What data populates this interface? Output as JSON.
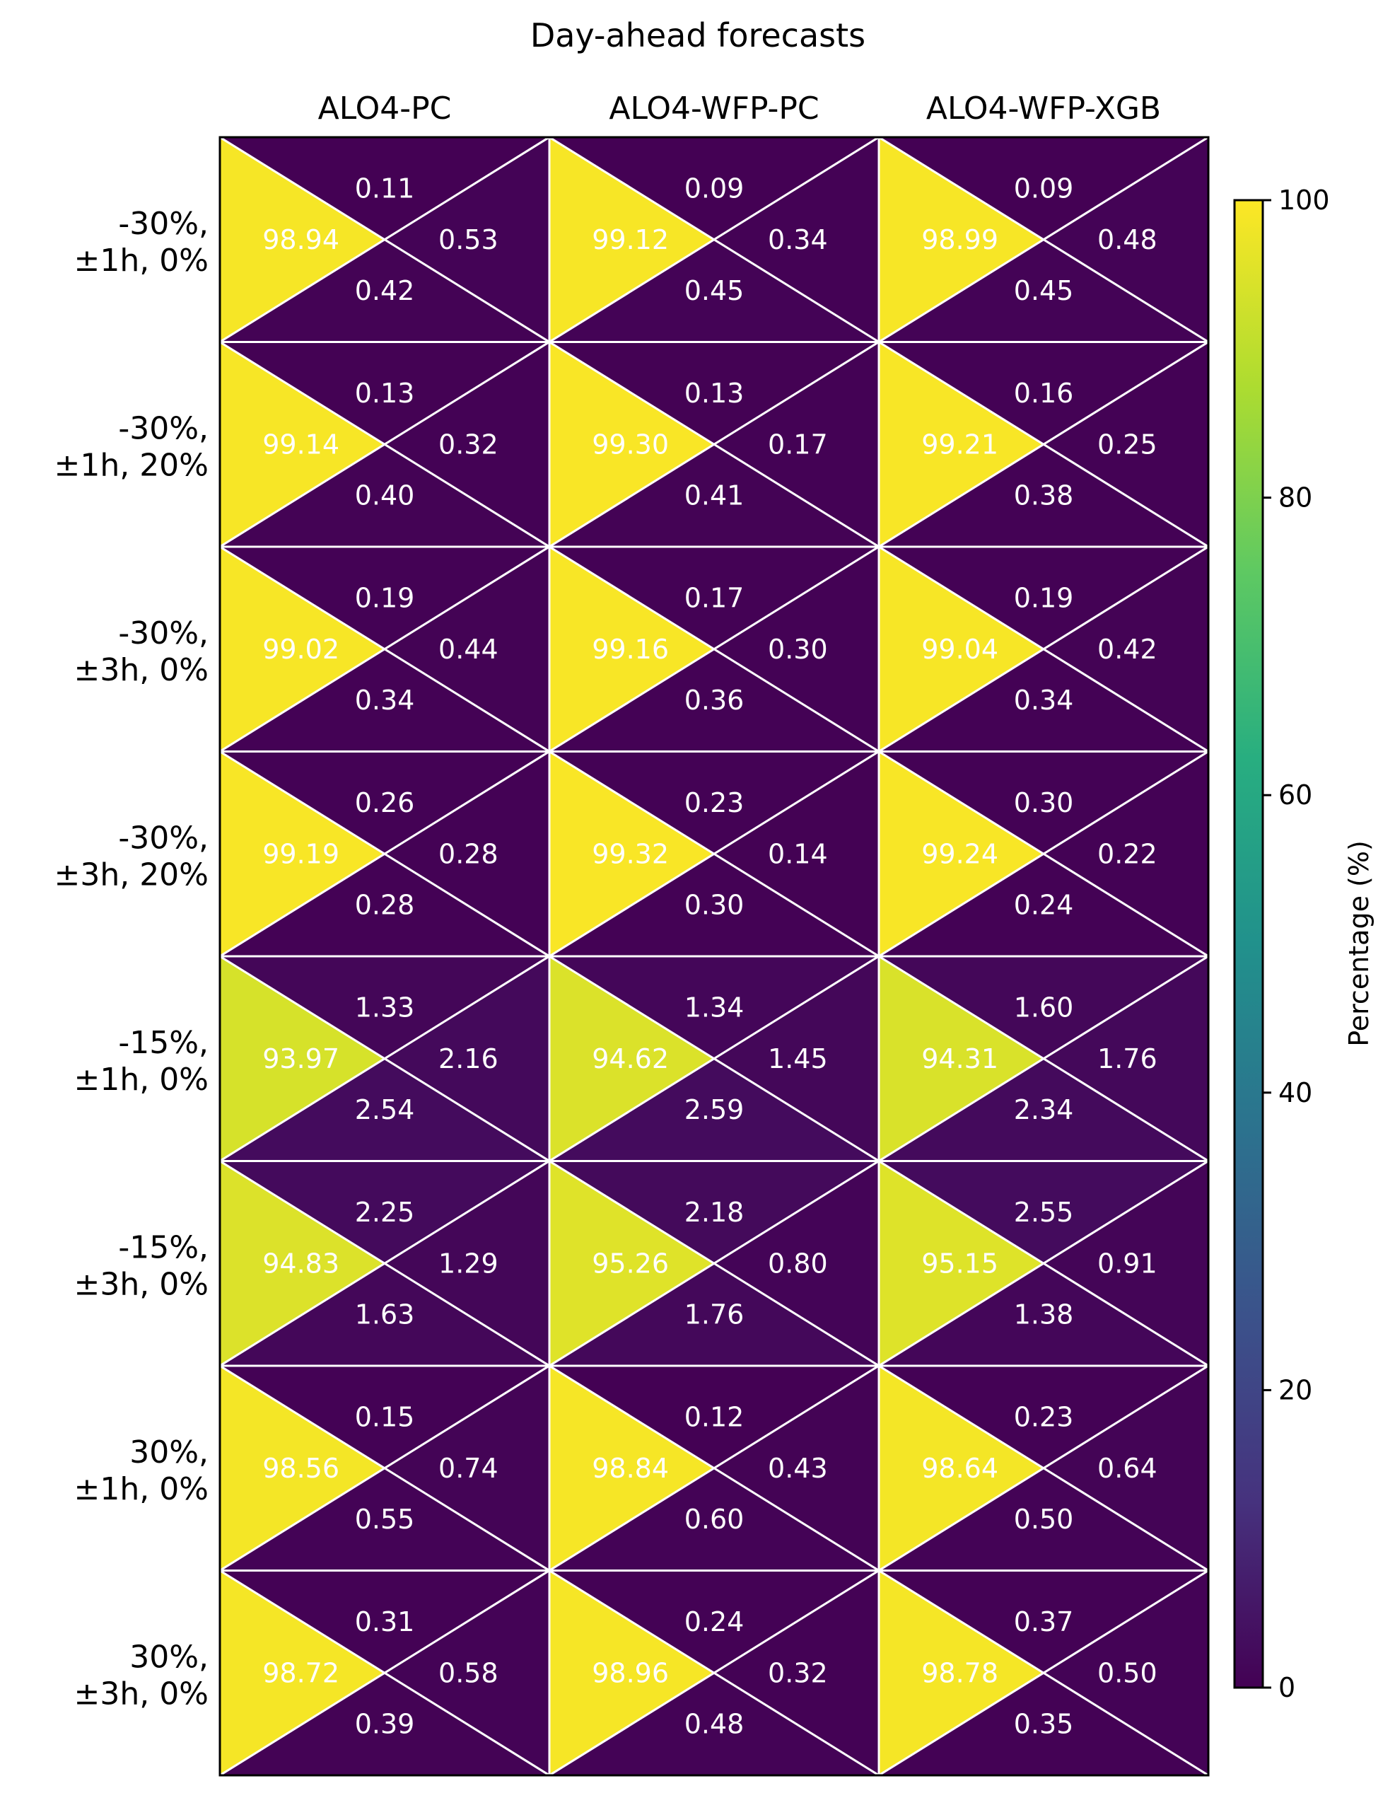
{
  "chart_data": {
    "type": "heatmap",
    "title": "Day-ahead forecasts",
    "columns": [
      "ALO4-PC",
      "ALO4-WFP-PC",
      "ALO4-WFP-XGB"
    ],
    "rows": [
      [
        "-30%,",
        "±1h, 0%"
      ],
      [
        "-30%,",
        "±1h, 20%"
      ],
      [
        "-30%,",
        "±3h, 0%"
      ],
      [
        "-30%,",
        "±3h, 20%"
      ],
      [
        "-15%,",
        "±1h, 0%"
      ],
      [
        "-15%,",
        "±3h, 0%"
      ],
      [
        "30%,",
        "±1h, 0%"
      ],
      [
        "30%,",
        "±3h, 0%"
      ]
    ],
    "cell_layout": "each cell split into four triangles: left, top, right, bottom",
    "cells": [
      [
        {
          "left": "98.94",
          "top": "0.11",
          "right": "0.53",
          "bottom": "0.42"
        },
        {
          "left": "99.12",
          "top": "0.09",
          "right": "0.34",
          "bottom": "0.45"
        },
        {
          "left": "98.99",
          "top": "0.09",
          "right": "0.48",
          "bottom": "0.45"
        }
      ],
      [
        {
          "left": "99.14",
          "top": "0.13",
          "right": "0.32",
          "bottom": "0.40"
        },
        {
          "left": "99.30",
          "top": "0.13",
          "right": "0.17",
          "bottom": "0.41"
        },
        {
          "left": "99.21",
          "top": "0.16",
          "right": "0.25",
          "bottom": "0.38"
        }
      ],
      [
        {
          "left": "99.02",
          "top": "0.19",
          "right": "0.44",
          "bottom": "0.34"
        },
        {
          "left": "99.16",
          "top": "0.17",
          "right": "0.30",
          "bottom": "0.36"
        },
        {
          "left": "99.04",
          "top": "0.19",
          "right": "0.42",
          "bottom": "0.34"
        }
      ],
      [
        {
          "left": "99.19",
          "top": "0.26",
          "right": "0.28",
          "bottom": "0.28"
        },
        {
          "left": "99.32",
          "top": "0.23",
          "right": "0.14",
          "bottom": "0.30"
        },
        {
          "left": "99.24",
          "top": "0.30",
          "right": "0.22",
          "bottom": "0.24"
        }
      ],
      [
        {
          "left": "93.97",
          "top": "1.33",
          "right": "2.16",
          "bottom": "2.54"
        },
        {
          "left": "94.62",
          "top": "1.34",
          "right": "1.45",
          "bottom": "2.59"
        },
        {
          "left": "94.31",
          "top": "1.60",
          "right": "1.76",
          "bottom": "2.34"
        }
      ],
      [
        {
          "left": "94.83",
          "top": "2.25",
          "right": "1.29",
          "bottom": "1.63"
        },
        {
          "left": "95.26",
          "top": "2.18",
          "right": "0.80",
          "bottom": "1.76"
        },
        {
          "left": "95.15",
          "top": "2.55",
          "right": "0.91",
          "bottom": "1.38"
        }
      ],
      [
        {
          "left": "98.56",
          "top": "0.15",
          "right": "0.74",
          "bottom": "0.55"
        },
        {
          "left": "98.84",
          "top": "0.12",
          "right": "0.43",
          "bottom": "0.60"
        },
        {
          "left": "98.64",
          "top": "0.23",
          "right": "0.64",
          "bottom": "0.50"
        }
      ],
      [
        {
          "left": "98.72",
          "top": "0.31",
          "right": "0.58",
          "bottom": "0.39"
        },
        {
          "left": "98.96",
          "top": "0.24",
          "right": "0.32",
          "bottom": "0.48"
        },
        {
          "left": "98.78",
          "top": "0.37",
          "right": "0.50",
          "bottom": "0.35"
        }
      ]
    ],
    "colorbar": {
      "label": "Percentage (%)",
      "colormap": "viridis",
      "range": [
        0,
        100
      ],
      "ticks": [
        "0",
        "20",
        "40",
        "60",
        "80",
        "100"
      ]
    },
    "cell_edge_color": "#ffffff",
    "text_color": "#ffffff"
  }
}
